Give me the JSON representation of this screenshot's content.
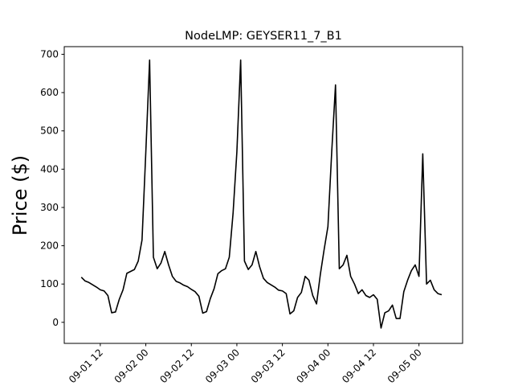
{
  "chart_data": {
    "type": "line",
    "title": "NodeLMP: GEYSER11_7_B1",
    "y_label": "Price ($)",
    "x": [
      7,
      8,
      9,
      10,
      11,
      12,
      13,
      14,
      15,
      16,
      17,
      18,
      19,
      20,
      21,
      22,
      23,
      24,
      25,
      26,
      27,
      28,
      29,
      30,
      31,
      32,
      33,
      34,
      35,
      36,
      37,
      38,
      39,
      40,
      41,
      42,
      43,
      44,
      45,
      46,
      47,
      48,
      49,
      50,
      51,
      52,
      53,
      54,
      55,
      56,
      57,
      58,
      59,
      60,
      61,
      62,
      63,
      64,
      65,
      66,
      67,
      68,
      69,
      70,
      71,
      72,
      73,
      74,
      75,
      76,
      77,
      78,
      79,
      80,
      81,
      82,
      83,
      84,
      85,
      86,
      87,
      88,
      89,
      90,
      91,
      92,
      93,
      94,
      95,
      96,
      97,
      98,
      99,
      100,
      101,
      102
    ],
    "series": [
      {
        "name": "Price",
        "color": "#000000",
        "values": [
          118,
          108,
          104,
          98,
          92,
          85,
          82,
          70,
          25,
          27,
          60,
          85,
          128,
          133,
          138,
          160,
          215,
          445,
          685,
          170,
          140,
          155,
          185,
          150,
          120,
          107,
          103,
          97,
          93,
          86,
          80,
          68,
          24,
          28,
          62,
          88,
          127,
          135,
          140,
          170,
          285,
          445,
          685,
          160,
          138,
          150,
          185,
          145,
          115,
          104,
          98,
          92,
          84,
          82,
          75,
          22,
          30,
          65,
          78,
          120,
          110,
          70,
          48,
          125,
          190,
          250,
          445,
          620,
          140,
          150,
          175,
          120,
          100,
          75,
          85,
          70,
          65,
          72,
          60,
          -15,
          25,
          30,
          45,
          10,
          10,
          80,
          110,
          135,
          150,
          120,
          440,
          100,
          110,
          85,
          75,
          72
        ]
      }
    ],
    "xlim": [
      2.5,
      107.5
    ],
    "xticks": [
      {
        "value": 12,
        "label": "09-01 12"
      },
      {
        "value": 24,
        "label": "09-02 00"
      },
      {
        "value": 36,
        "label": "09-02 12"
      },
      {
        "value": 48,
        "label": "09-03 00"
      },
      {
        "value": 60,
        "label": "09-03 12"
      },
      {
        "value": 72,
        "label": "09-04 00"
      },
      {
        "value": 84,
        "label": "09-04 12"
      },
      {
        "value": 96,
        "label": "09-05 00"
      }
    ],
    "ylim": [
      -55,
      720
    ],
    "yticks": [
      0,
      100,
      200,
      300,
      400,
      500,
      600,
      700
    ]
  }
}
